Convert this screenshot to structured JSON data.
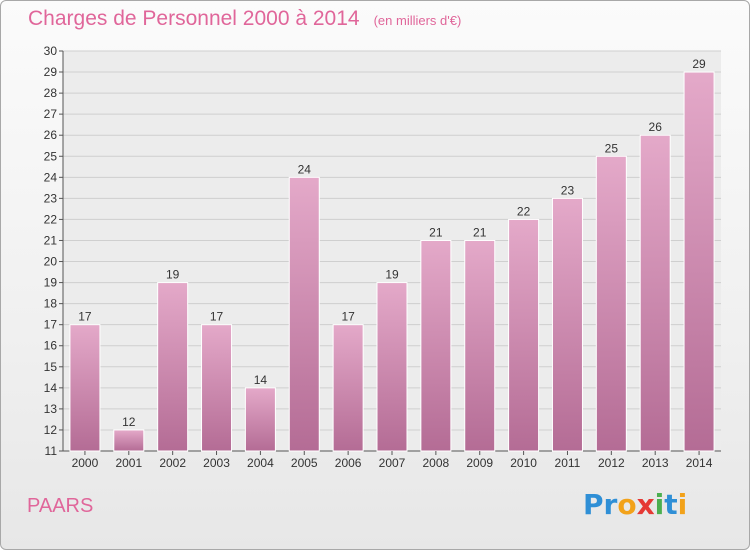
{
  "title": "Charges de Personnel 2000 à 2014",
  "subtitle": "(en milliers d'€)",
  "place": "PAARS",
  "logo": {
    "letters": [
      "P",
      "r",
      "o",
      "x",
      "i",
      "t",
      "i"
    ],
    "colors": [
      "#2f8fd6",
      "#2f8fd6",
      "#f2a21a",
      "#e53935",
      "#4caf50",
      "#2f8fd6",
      "#f2a21a"
    ]
  },
  "colors": {
    "accent": "#e0669a",
    "bar_top": "#e4a9c9",
    "bar_bottom": "#b46c95"
  },
  "chart_data": {
    "type": "bar",
    "categories": [
      "2000",
      "2001",
      "2002",
      "2003",
      "2004",
      "2005",
      "2006",
      "2007",
      "2008",
      "2009",
      "2010",
      "2011",
      "2012",
      "2013",
      "2014"
    ],
    "values": [
      17,
      12,
      19,
      17,
      14,
      24,
      17,
      19,
      21,
      21,
      22,
      23,
      25,
      26,
      29
    ],
    "ylim": [
      11,
      30
    ],
    "yticks": [
      11,
      12,
      13,
      14,
      15,
      16,
      17,
      18,
      19,
      20,
      21,
      22,
      23,
      24,
      25,
      26,
      27,
      28,
      29,
      30
    ],
    "grid": true,
    "xlabel": "",
    "ylabel": ""
  }
}
